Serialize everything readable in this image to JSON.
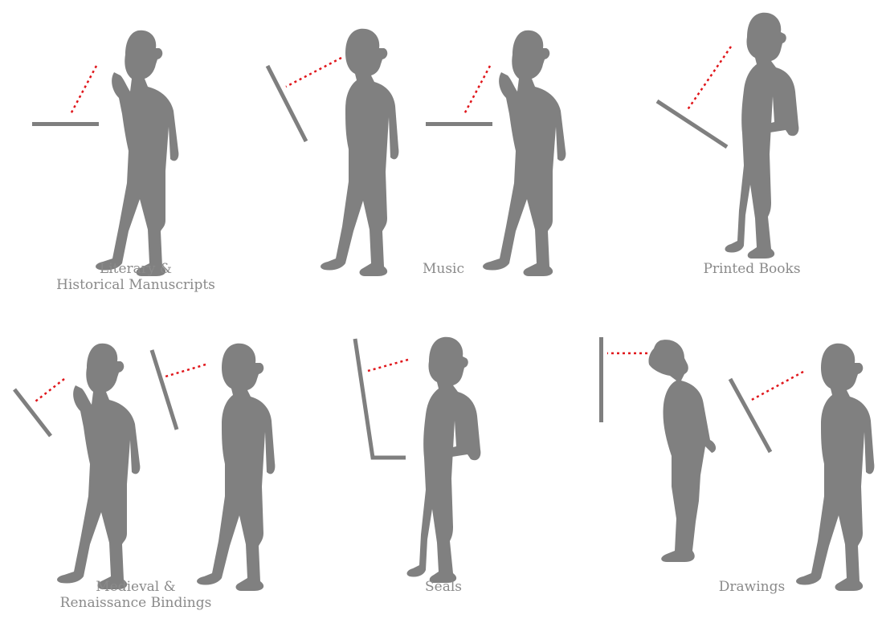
{
  "captions": {
    "literary": {
      "line1": "Literary &",
      "line2": "Historical Manuscripts"
    },
    "music": {
      "line1": "Music"
    },
    "printed": {
      "line1": "Printed Books"
    },
    "medieval": {
      "line1": "Medieval &",
      "line2": "Renaissance Bindings"
    },
    "seals": {
      "line1": "Seals"
    },
    "drawings": {
      "line1": "Drawings"
    }
  },
  "colors": {
    "figure": "#808080",
    "board": "#7f7f7f",
    "sightline": "#e0161b",
    "caption": "#8a8a8a"
  }
}
